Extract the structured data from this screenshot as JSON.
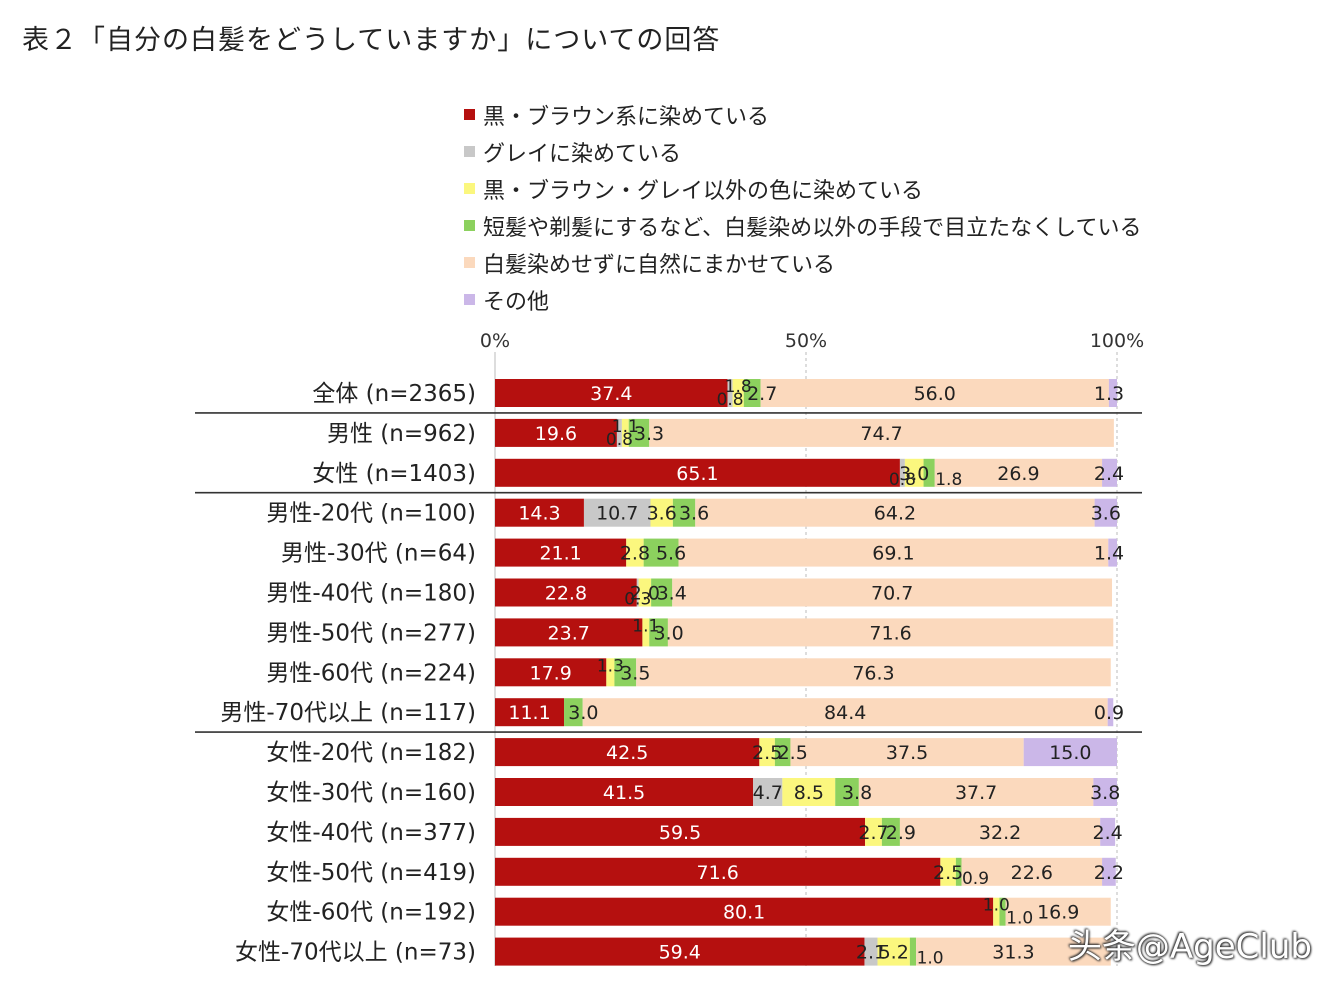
{
  "title": "表２「自分の白髪をどうしていますか」についての回答",
  "watermark": "头条@AgeClub",
  "colors": [
    "#b5100f",
    "#c8c8c8",
    "#fbf77e",
    "#8cd15e",
    "#fbd9bd",
    "#cbb7e8"
  ],
  "chart_data": {
    "type": "bar",
    "orientation": "horizontal",
    "stacked": true,
    "xlim": [
      0,
      100
    ],
    "xticks": [
      "0%",
      "50%",
      "100%"
    ],
    "legend_position": "top",
    "grid": "vertical gridlines at 50% and 100%",
    "series": [
      {
        "name": "黒・ブラウン系に染めている",
        "values": [
          37.4,
          19.6,
          65.1,
          14.3,
          21.1,
          22.8,
          23.7,
          17.9,
          11.1,
          42.5,
          41.5,
          59.5,
          71.6,
          80.1,
          59.4
        ]
      },
      {
        "name": "グレイに染めている",
        "values": [
          0.8,
          0.8,
          0.8,
          10.7,
          0,
          0.3,
          0,
          0,
          0,
          0,
          4.7,
          0,
          0,
          0,
          2.1
        ]
      },
      {
        "name": "黒・ブラウン・グレイ以外の色に染めている",
        "values": [
          1.8,
          1.1,
          3.0,
          3.6,
          2.8,
          2.0,
          1.1,
          1.3,
          0,
          2.5,
          8.5,
          2.7,
          2.5,
          1.0,
          5.2
        ]
      },
      {
        "name": "短髪や剃髪にするなど、白髪染め以外の手段で目立たなくしている",
        "values": [
          2.7,
          3.3,
          1.8,
          3.6,
          5.6,
          3.4,
          3.0,
          3.5,
          3.0,
          2.5,
          3.8,
          2.9,
          0.9,
          1.0,
          1.0
        ]
      },
      {
        "name": "白髪染めせずに自然にまかせている",
        "values": [
          56.0,
          74.7,
          26.9,
          64.2,
          69.1,
          70.7,
          71.6,
          76.3,
          84.4,
          37.5,
          37.7,
          32.2,
          22.6,
          16.9,
          31.3
        ]
      },
      {
        "name": "その他",
        "values": [
          1.3,
          0,
          2.4,
          3.6,
          1.4,
          0,
          0,
          0,
          0.9,
          15.0,
          3.8,
          2.4,
          2.2,
          0,
          0
        ]
      }
    ],
    "categories": [
      "全体 (n=2365)",
      "男性 (n=962)",
      "女性 (n=1403)",
      "男性-20代 (n=100)",
      "男性-30代 (n=64)",
      "男性-40代 (n=180)",
      "男性-50代 (n=277)",
      "男性-60代 (n=224)",
      "男性-70代以上 (n=117)",
      "女性-20代 (n=182)",
      "女性-30代 (n=160)",
      "女性-40代 (n=377)",
      "女性-50代 (n=419)",
      "女性-60代 (n=192)",
      "女性-70代以上 (n=73)"
    ],
    "segment_labels": [
      [
        "37.4",
        "0.8",
        "1.8",
        "2.7",
        "56.0",
        "1.3"
      ],
      [
        "19.6",
        "0.8",
        "1.1",
        "3.3",
        "74.7",
        ""
      ],
      [
        "65.1",
        "0.8",
        "3.0",
        "1.8",
        "26.9",
        "2.4"
      ],
      [
        "14.3",
        "10.7",
        "3.6",
        "3.6",
        "64.2",
        "3.6"
      ],
      [
        "21.1",
        "",
        "2.8",
        "5.6",
        "69.1",
        "1.4"
      ],
      [
        "22.8",
        "0.3",
        "2.0",
        "3.4",
        "70.7",
        ""
      ],
      [
        "23.7",
        "",
        "1.1",
        "3.0",
        "71.6",
        ""
      ],
      [
        "17.9",
        "",
        "1.3",
        "3.5",
        "76.3",
        ""
      ],
      [
        "11.1",
        "",
        "",
        "3.0",
        "84.4",
        "0.9"
      ],
      [
        "42.5",
        "",
        "2.5",
        "2.5",
        "37.5",
        "15.0"
      ],
      [
        "41.5",
        "4.7",
        "8.5",
        "3.8",
        "37.7",
        "3.8"
      ],
      [
        "59.5",
        "",
        "2.7",
        "2.9",
        "32.2",
        "2.4"
      ],
      [
        "71.6",
        "",
        "2.5",
        "0.9",
        "22.6",
        "2.2"
      ],
      [
        "80.1",
        "",
        "1.0",
        "1.0",
        "16.9",
        ""
      ],
      [
        "59.4",
        "2.1",
        "5.2",
        "1.0",
        "31.3",
        ""
      ]
    ]
  }
}
